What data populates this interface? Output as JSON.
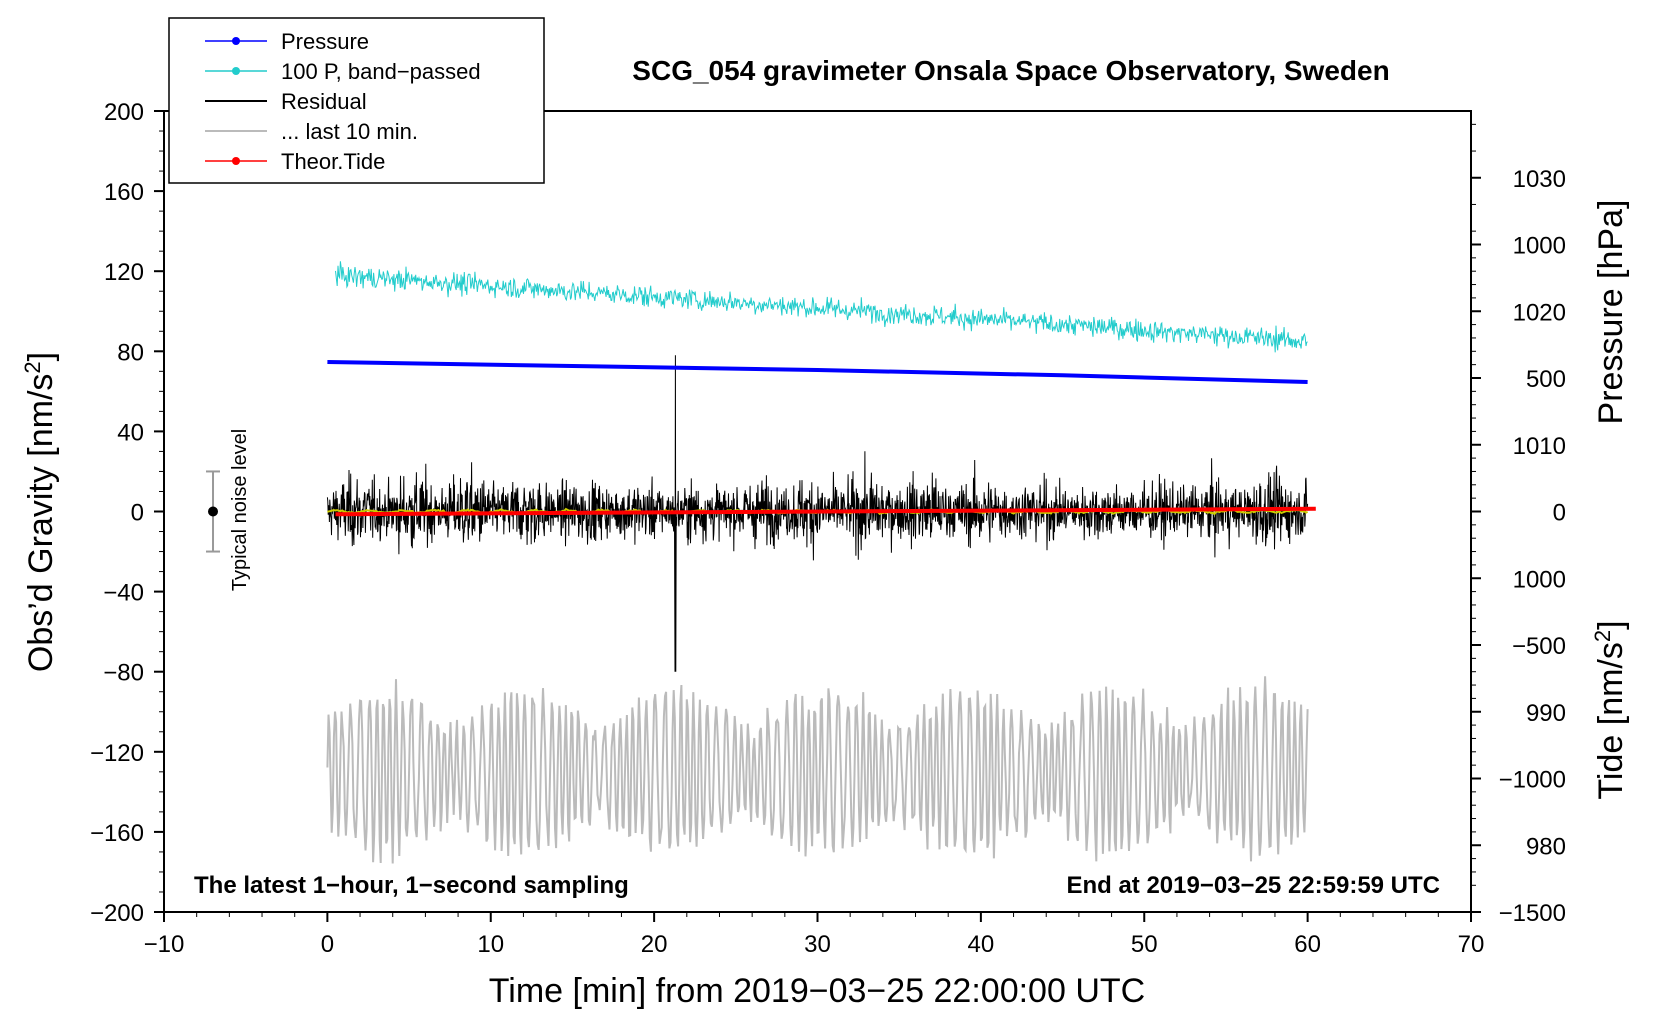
{
  "colors": {
    "pressure": "#0000ff",
    "bandpassed": "#22cccc",
    "residual": "#000000",
    "last10": "#bbbbbb",
    "tide": "#ff0000",
    "mean": "#cccc00"
  },
  "chart_data": {
    "type": "line",
    "title": "SCG_054 gravimeter Onsala Space Observatory, Sweden",
    "xlabel": "Time [min] from 2019−03−25 22:00:00 UTC",
    "ylabel_main": "Obs’d Gravity [nm/s",
    "ylabel_sup": "2",
    "ylabel_end": "]",
    "ylabel_pressure": "Pressure [hPa]",
    "ylabel_tide": "Tide [nm/s",
    "ylabel_tide_sup": "2",
    "ylabel_tide_end": "]",
    "xlim": [
      -10,
      70
    ],
    "ylim": [
      -200,
      200
    ],
    "pressure_axis": {
      "range": [
        975,
        1035
      ]
    },
    "tide_axis": {
      "range": [
        -1500,
        1500
      ]
    },
    "x_ticks": [
      "−10",
      "0",
      "10",
      "20",
      "30",
      "40",
      "50",
      "60",
      "70"
    ],
    "x_tick_values": [
      -10,
      0,
      10,
      20,
      30,
      40,
      50,
      60,
      70
    ],
    "y_ticks": [
      "200",
      "160",
      "120",
      "80",
      "40",
      "0",
      "−40",
      "−80",
      "−120",
      "−160",
      "−200"
    ],
    "y_tick_values": [
      200,
      160,
      120,
      80,
      40,
      0,
      -40,
      -80,
      -120,
      -160,
      -200
    ],
    "pressure_ticks": [
      "1030",
      "1020",
      "1010",
      "1000",
      "990",
      "980"
    ],
    "pressure_tick_values": [
      1030,
      1020,
      1010,
      1000,
      990,
      980
    ],
    "tide_ticks": [
      "1000",
      "500",
      "0",
      "−500",
      "−1000",
      "−1500"
    ],
    "tide_tick_values": [
      1000,
      500,
      0,
      -500,
      -1000,
      -1500
    ],
    "legend": [
      "Pressure",
      "100 P, band−passed",
      "Residual",
      "... last 10 min.",
      "Theor.Tide"
    ],
    "legend_position": "top-left",
    "noise_label": "Typical noise level",
    "noise_bar": {
      "x": -7,
      "center": 0,
      "half_range": 20
    },
    "annotation_left": "The latest 1−hour, 1−second sampling",
    "annotation_right": "End at 2019−03−25 22:59:59 UTC",
    "series": [
      {
        "name": "Pressure",
        "axis": "pressure",
        "x": [
          0,
          15,
          30,
          45,
          60
        ],
        "values": [
          1016.2,
          1015.9,
          1015.6,
          1015.2,
          1014.7
        ]
      },
      {
        "name": "100 P, band−passed",
        "axis": "gravity",
        "x_range": [
          0.5,
          60
        ],
        "trend": [
          118,
          85
        ],
        "amplitude": 5
      },
      {
        "name": "Residual",
        "axis": "gravity",
        "x_range": [
          0,
          60
        ],
        "center": 0,
        "amplitude": 30,
        "peak": [
          78,
          -80
        ]
      },
      {
        "name": "... last 10 min.",
        "axis": "gravity",
        "x_range": [
          0,
          60
        ],
        "center": -130,
        "amplitude": 40
      },
      {
        "name": "Theor.Tide",
        "axis": "tide",
        "x": [
          0.5,
          60.5
        ],
        "values": [
          -10,
          10
        ]
      }
    ]
  }
}
